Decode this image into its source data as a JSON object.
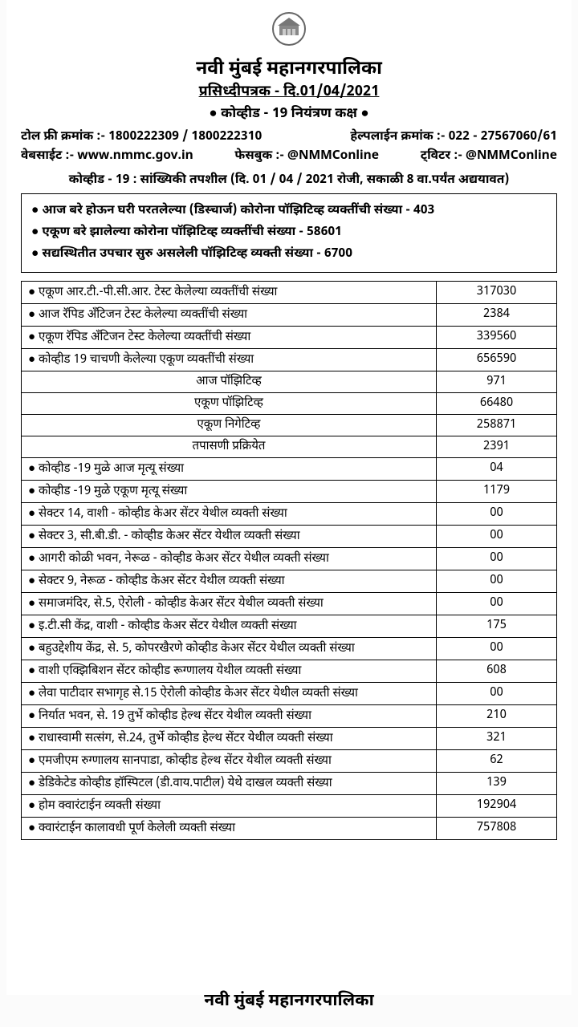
{
  "header": {
    "org": "नवी मुंबई महानगरपालिका",
    "release": "प्रसिध्दीपत्रक - दि.01/04/2021",
    "unit": "● कोव्हीड - 19 नियंत्रण कक्ष ●",
    "toll_label": "टोल फ्री क्रमांक :- 1800222309 / 1800222310",
    "helpline_label": "हेल्पलाईन क्रमांक :- 022 - 27567060/61",
    "website": "वेबसाईट :- www.nmmc.gov.in",
    "facebook": "फेसबुक :- @NMMConline",
    "twitter": "ट्विटर :- @NMMConline",
    "section": "कोव्हीड - 19 : सांख्यिकी तपशील  (दि. 01 / 04 / 2021 रोजी, सकाळी 8 वा.पर्यंत अद्ययावत)"
  },
  "summary": {
    "discharged": "● आज बरे होऊन घरी परतलेल्या (डिस्चार्ज) कोरोना पॉझिटिव्ह व्यक्तींची संख्या - 403",
    "total_recovered": "● एकूण बरे झालेल्या कोरोना पॉझिटिव्ह व्यक्तींची संख्या - 58601",
    "active": "● सद्यस्थितीत उपचार सुरु असलेली पॉझिटिव्ह व्यक्ती संख्या - 6700"
  },
  "rows": [
    {
      "label": "● एकूण आर.टी.-पी.सी.आर. टेस्ट केलेल्या व्यक्तींची संख्या",
      "val": "317030",
      "align": "left"
    },
    {
      "label": "● आज रॅपिड अँटिजन टेस्ट केलेल्या व्यक्तींची संख्या",
      "val": "2384",
      "align": "left"
    },
    {
      "label": "● एकूण रॅपिड अँटिजन टेस्ट केलेल्या व्यक्तींची संख्या",
      "val": "339560",
      "align": "left"
    },
    {
      "label": "● कोव्हीड 19 चाचणी केलेल्या एकूण व्यक्तींची संख्या",
      "val": "656590",
      "align": "left"
    },
    {
      "label": "आज पॉझिटिव्ह",
      "val": "971",
      "align": "center"
    },
    {
      "label": "एकूण पॉझिटिव्ह",
      "val": "66480",
      "align": "center"
    },
    {
      "label": "एकूण निगेटिव्ह",
      "val": "258871",
      "align": "center"
    },
    {
      "label": "तपासणी प्रक्रियेत",
      "val": "2391",
      "align": "center"
    },
    {
      "label": "● कोव्हीड -19 मुळे आज मृत्यू संख्या",
      "val": "04",
      "align": "left"
    },
    {
      "label": "● कोव्हीड -19 मुळे एकूण मृत्यू संख्या",
      "val": "1179",
      "align": "left"
    },
    {
      "label": "● सेक्टर 14, वाशी - कोव्हीड केअर सेंटर येथील व्यक्ती संख्या",
      "val": "00",
      "align": "left"
    },
    {
      "label": "● सेक्टर 3, सी.बी.डी. - कोव्हीड केअर सेंटर येथील व्यक्ती संख्या",
      "val": "00",
      "align": "left"
    },
    {
      "label": "● आगरी कोळी भवन, नेरूळ - कोव्हीड केअर सेंटर येथील व्यक्ती संख्या",
      "val": "00",
      "align": "left"
    },
    {
      "label": "● सेक्टर 9, नेरूळ - कोव्हीड केअर सेंटर येथील व्यक्ती संख्या",
      "val": "00",
      "align": "left"
    },
    {
      "label": "● समाजमंदिर, से.5, ऐरोली - कोव्हीड केअर सेंटर येथील व्यक्ती संख्या",
      "val": "00",
      "align": "left"
    },
    {
      "label": "● इ.टी.सी केंद्र, वाशी - कोव्हीड केअर सेंटर येथील व्यक्ती संख्या",
      "val": "175",
      "align": "left"
    },
    {
      "label": "● बहुउद्देशीय केंद्र, से. 5, कोपरखैरणे कोव्हीड केअर सेंटर येथील व्यक्ती संख्या",
      "val": "00",
      "align": "left"
    },
    {
      "label": "● वाशी एक्झिबिशन सेंटर कोव्हीड रूग्णालय येथील व्यक्ती संख्या",
      "val": "608",
      "align": "left"
    },
    {
      "label": "● लेवा पाटीदार सभागृह से.15 ऐरोली कोव्हीड केअर सेंटर येथील व्यक्ती संख्या",
      "val": "00",
      "align": "left"
    },
    {
      "label": "● निर्यात भवन, से. 19 तुर्भे कोव्हीड हेल्थ सेंटर येथील व्यक्ती संख्या",
      "val": "210",
      "align": "left"
    },
    {
      "label": "● राधास्वामी सत्संग, से.24, तुर्भे कोव्हीड हेल्थ सेंटर येथील व्यक्ती संख्या",
      "val": "321",
      "align": "left"
    },
    {
      "label": "● एमजीएम रुग्णालय सानपाडा, कोव्हीड हेल्थ सेंटर येथील व्यक्ती संख्या",
      "val": "62",
      "align": "left"
    },
    {
      "label": "● डेडिकेटेड कोव्हीड हॉस्पिटल (डी.वाय.पाटील) येथे दाखल व्यक्ती संख्या",
      "val": "139",
      "align": "left"
    },
    {
      "label": "● होम क्वारंटाईन व्यक्ती संख्या",
      "val": "192904",
      "align": "left"
    },
    {
      "label": "● क्वारंटाईन कालावधी पूर्ण केलेली व्यक्ती संख्या",
      "val": "757808",
      "align": "left"
    }
  ],
  "footer": "नवी मुंबई महानगरपालिका"
}
